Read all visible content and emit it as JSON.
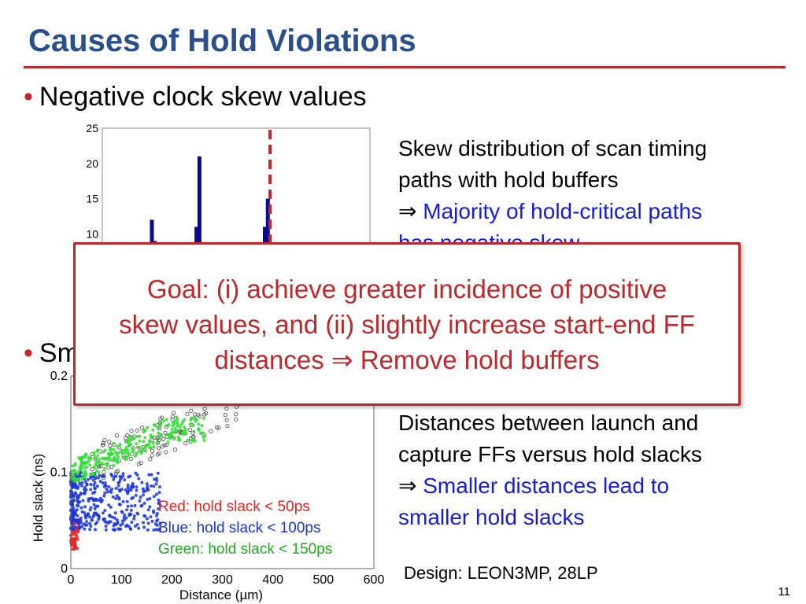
{
  "slide": {
    "title": "Causes of Hold Violations",
    "bullet1": "Negative clock skew values",
    "bullet2_partial": "Sm",
    "skew_desc": {
      "line1": "Skew distribution of scan timing",
      "line2": "paths with hold buffers",
      "line3_arrow": "⇒ ",
      "line3": "Majority of hold-critical paths",
      "line4_partial": "has negative skew"
    },
    "goal_box": {
      "line1": "Goal: (i) achieve greater incidence of positive",
      "line2": "skew values, and (ii) slightly increase start-end FF",
      "line3": "distances ⇒ Remove hold buffers"
    },
    "dist_desc": {
      "line1": "Distances between launch and",
      "line2": "capture FFs versus hold slacks",
      "line3_arrow": "⇒ ",
      "line3": "Smaller distances lead to",
      "line4": "smaller hold slacks"
    },
    "legend": {
      "red": "Red:    hold slack < 50ps",
      "blue": "Blue:    hold slack < 100ps",
      "green": "Green: hold slack < 150ps"
    },
    "design": "Design: LEON3MP, 28LP",
    "page_number": "11"
  },
  "colors": {
    "title": "#2a4f8a",
    "accent_red": "#c0272d",
    "text_blue": "#1a1adc",
    "bar": "#0a0a8a",
    "scatter_red": "#ee2222",
    "scatter_blue": "#1a33dd",
    "scatter_green": "#33dd33"
  },
  "chart_data": [
    {
      "type": "bar",
      "title": "",
      "xlabel": "",
      "ylabel": "",
      "ylim": [
        0,
        25
      ],
      "yticks": [
        "25",
        "20",
        "15",
        "10"
      ],
      "x": [
        0.8,
        0.85,
        1.55,
        1.6,
        2.7,
        2.75
      ],
      "values": [
        12,
        9,
        11,
        21,
        11,
        15
      ],
      "threshold_line_x": 2.82,
      "grid": false
    },
    {
      "type": "scatter",
      "title": "",
      "xlabel": "Distance (µm)",
      "ylabel": "Hold slack (ns)",
      "xlim": [
        0,
        600
      ],
      "ylim": [
        0,
        0.2
      ],
      "xticks": [
        "0",
        "100",
        "200",
        "300",
        "400",
        "500",
        "600"
      ],
      "yticks": [
        "0.2",
        "0.1",
        "0"
      ],
      "series": [
        {
          "name": "Red",
          "color": "#ee2222",
          "x_range": [
            0,
            30
          ],
          "y_range": [
            0.02,
            0.05
          ]
        },
        {
          "name": "Blue",
          "color": "#1a33dd",
          "x_range": [
            0,
            180
          ],
          "y_range": [
            0.04,
            0.1
          ]
        },
        {
          "name": "Green",
          "color": "#33dd33",
          "x_range": [
            0,
            380
          ],
          "y_range": [
            0.1,
            0.15
          ]
        }
      ],
      "grid": false
    }
  ]
}
